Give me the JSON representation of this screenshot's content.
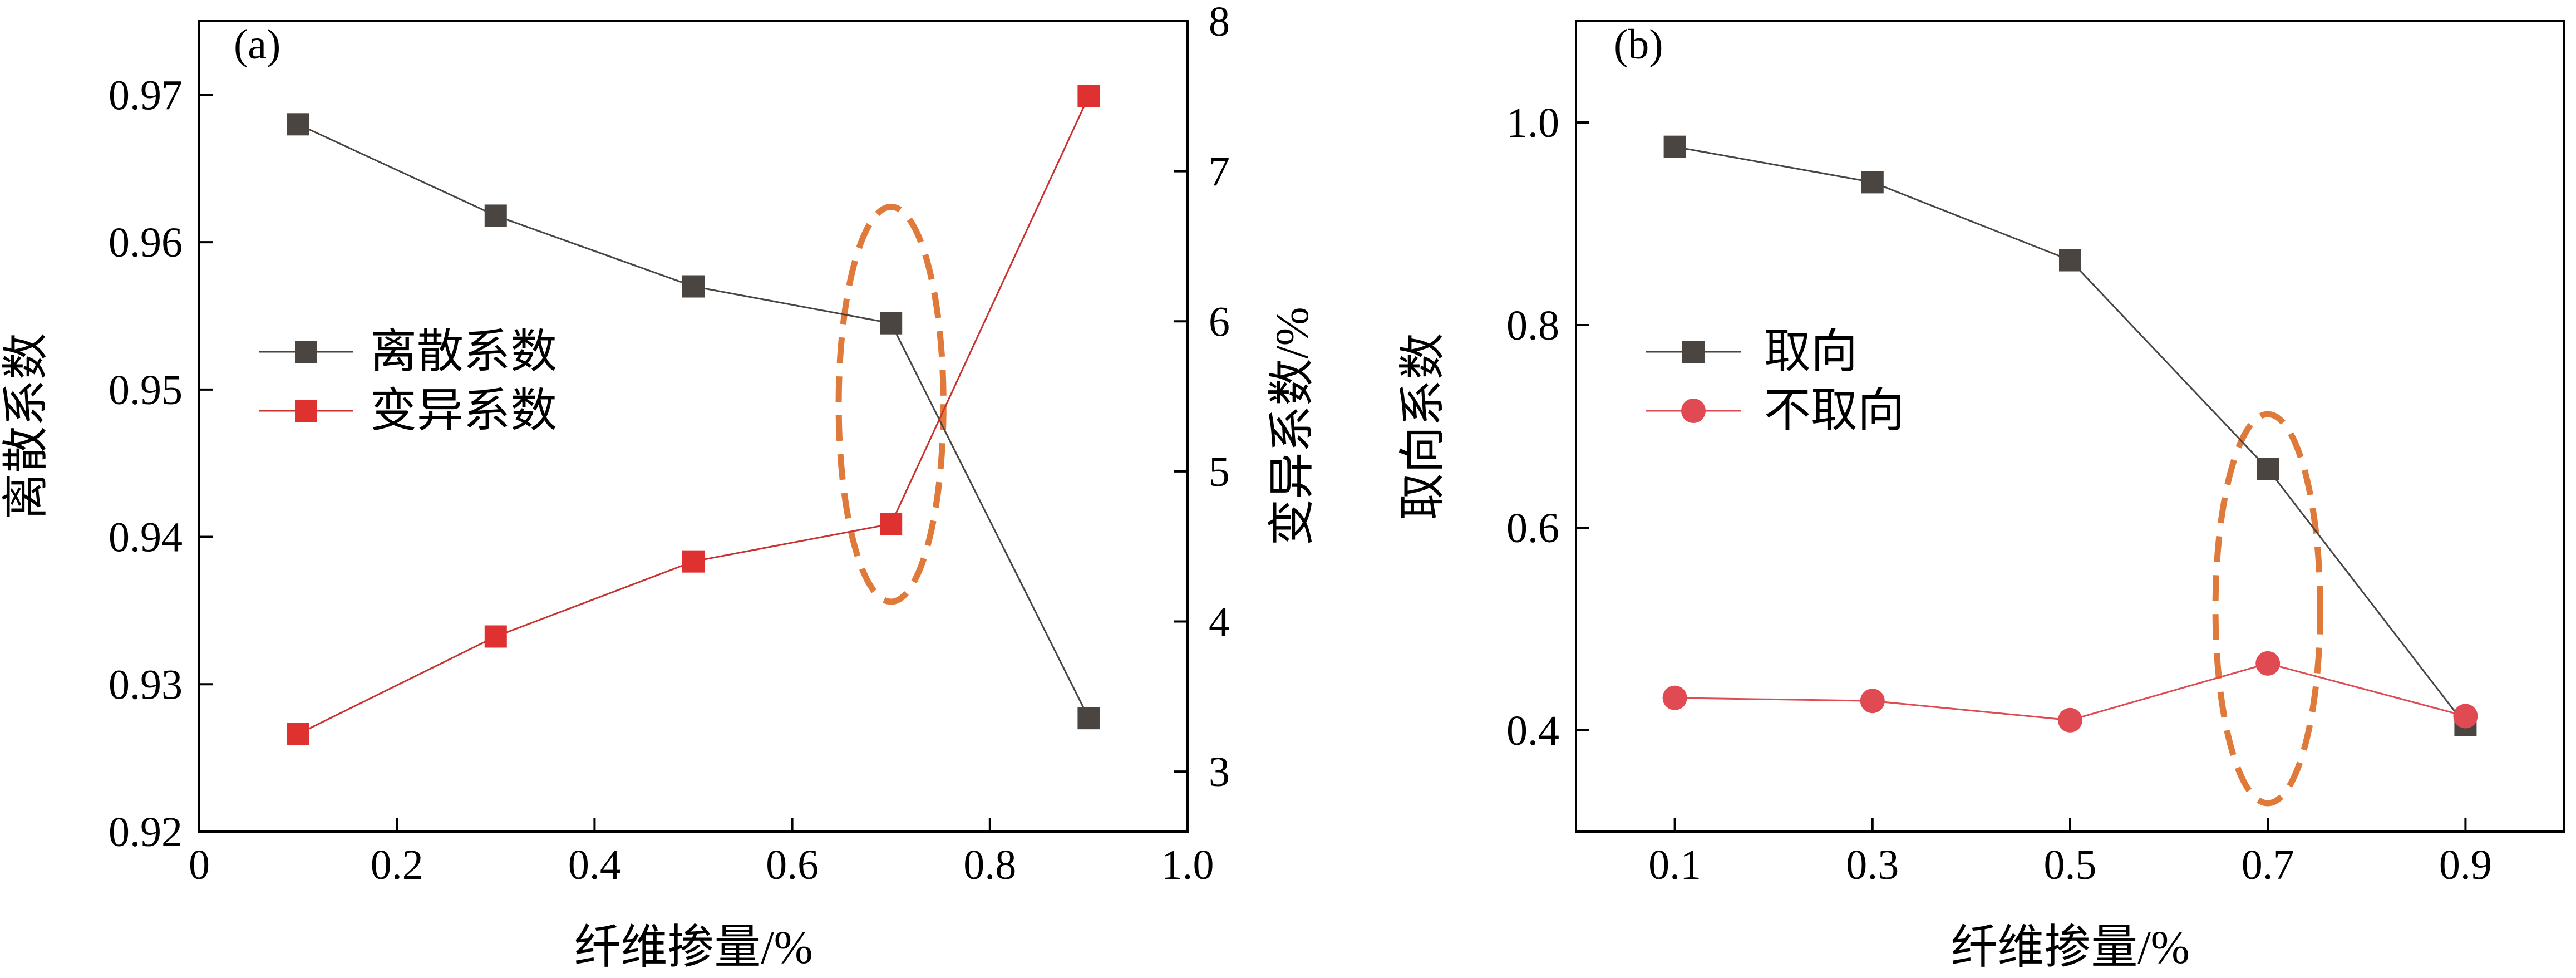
{
  "colors": {
    "gray_series": "#4a4541",
    "red_square_series": "#e03131",
    "red_line": "#c8332f",
    "red_circle_series": "#e04a52",
    "ellipse": "#e07a3a"
  },
  "chart_data": [
    {
      "id": "a",
      "panel_label": "(a)",
      "type": "line",
      "xlabel": "纤维掺量/%",
      "ylabel": "离散系数",
      "y2label": "变异系数/%",
      "xlim": [
        0,
        1.0
      ],
      "ylim": [
        0.92,
        0.975
      ],
      "y2lim": [
        2.6,
        8.0
      ],
      "xticks": [
        "0",
        "0.2",
        "0.4",
        "0.6",
        "0.8",
        "1.0"
      ],
      "xtick_values": [
        0,
        0.2,
        0.4,
        0.6,
        0.8,
        1.0
      ],
      "yticks": [
        "0.92",
        "0.93",
        "0.94",
        "0.95",
        "0.96",
        "0.97"
      ],
      "ytick_values": [
        0.92,
        0.93,
        0.94,
        0.95,
        0.96,
        0.97
      ],
      "y2ticks": [
        "3",
        "4",
        "5",
        "6",
        "7",
        "8"
      ],
      "y2tick_values": [
        3,
        4,
        5,
        6,
        7,
        8
      ],
      "series": [
        {
          "name": "离散系数",
          "axis": "left",
          "marker": "square",
          "color_key": "gray_series",
          "line_color_key": "gray_series",
          "x": [
            0.1,
            0.3,
            0.5,
            0.7,
            0.9
          ],
          "y": [
            0.968,
            0.9618,
            0.957,
            0.9545,
            0.9277
          ]
        },
        {
          "name": "变异系数",
          "axis": "right",
          "marker": "square",
          "color_key": "red_square_series",
          "line_color_key": "red_line",
          "x": [
            0.1,
            0.3,
            0.5,
            0.7,
            0.9
          ],
          "y": [
            3.25,
            3.9,
            4.4,
            4.65,
            7.5
          ]
        }
      ],
      "highlight": {
        "x": 0.7,
        "y_center": 0.949,
        "rx_data": 0.053,
        "ry_data": 0.0134
      },
      "legend_position": "center-left"
    },
    {
      "id": "b",
      "panel_label": "(b)",
      "type": "line",
      "xlabel": "纤维掺量/%",
      "ylabel": "取向系数",
      "xlim": [
        0,
        1.0
      ],
      "ylim": [
        0.3,
        1.1
      ],
      "xticks": [
        "0.1",
        "0.3",
        "0.5",
        "0.7",
        "0.9"
      ],
      "xtick_values": [
        0.1,
        0.3,
        0.5,
        0.7,
        0.9
      ],
      "yticks": [
        "0.4",
        "0.6",
        "0.8",
        "1.0"
      ],
      "ytick_values": [
        0.4,
        0.6,
        0.8,
        1.0
      ],
      "series": [
        {
          "name": "取向",
          "axis": "left",
          "marker": "square",
          "color_key": "gray_series",
          "line_color_key": "gray_series",
          "x": [
            0.1,
            0.3,
            0.5,
            0.7,
            0.9
          ],
          "y": [
            0.976,
            0.941,
            0.864,
            0.658,
            0.405
          ]
        },
        {
          "name": "不取向",
          "axis": "left",
          "marker": "circle",
          "color_key": "red_circle_series",
          "line_color_key": "red_circle_series",
          "x": [
            0.1,
            0.3,
            0.5,
            0.7,
            0.9
          ],
          "y": [
            0.432,
            0.429,
            0.41,
            0.466,
            0.414
          ]
        }
      ],
      "highlight": {
        "x": 0.7,
        "y_center": 0.52,
        "rx_data": 0.053,
        "ry_data": 0.192
      },
      "legend_position": "upper-left"
    }
  ]
}
